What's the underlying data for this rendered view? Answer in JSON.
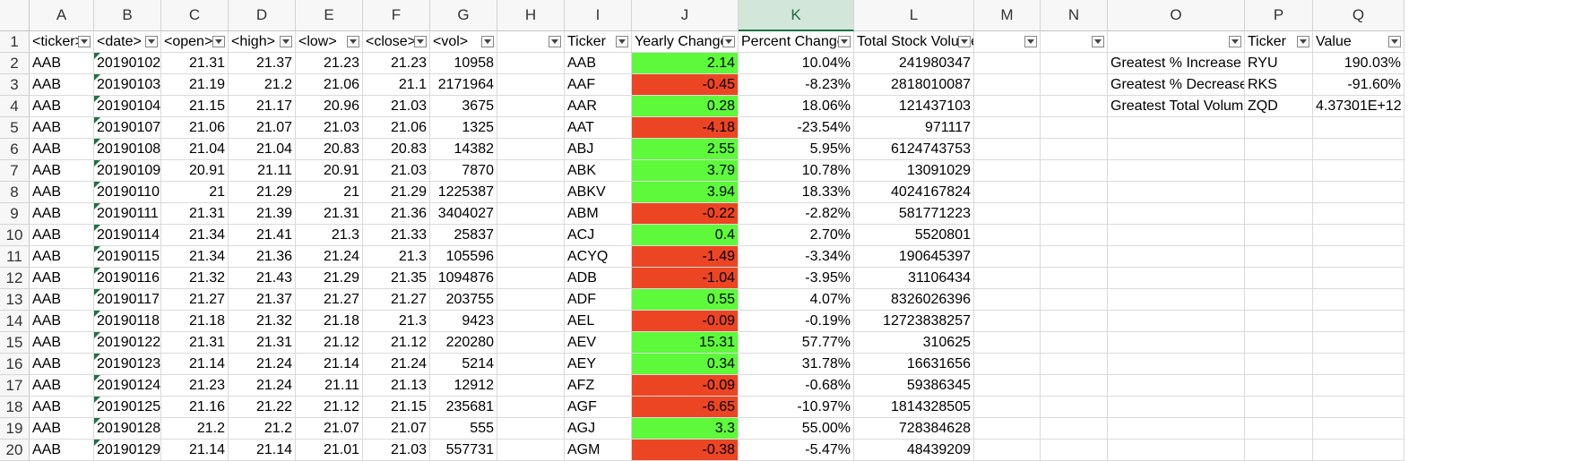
{
  "sheet": {
    "columns": [
      "A",
      "B",
      "C",
      "D",
      "E",
      "F",
      "G",
      "H",
      "I",
      "J",
      "K",
      "L",
      "M",
      "N",
      "O",
      "P",
      "Q"
    ],
    "selected_column": "K",
    "rows": [
      "1",
      "2",
      "3",
      "4",
      "5",
      "6",
      "7",
      "8",
      "9",
      "10",
      "11",
      "12",
      "13",
      "14",
      "15",
      "16",
      "17",
      "18",
      "19",
      "20"
    ],
    "headers": [
      "<ticker>",
      "<date>",
      "<open>",
      "<high>",
      "<low>",
      "<close>",
      "<vol>",
      "",
      "Ticker",
      "Yearly Change",
      "Percent Change",
      "Total Stock Volume",
      "",
      "",
      "",
      "Ticker",
      "Value"
    ],
    "filter_columns": [
      "A",
      "B",
      "C",
      "D",
      "E",
      "F",
      "G",
      "H",
      "I",
      "J",
      "K",
      "L",
      "M",
      "N",
      "O",
      "P",
      "Q"
    ],
    "data": [
      [
        "AAB",
        "20190102",
        "21.31",
        "21.37",
        "21.23",
        "21.23",
        "10958",
        "AAB",
        "2.14",
        "10.04%",
        "241980347"
      ],
      [
        "AAB",
        "20190103",
        "21.19",
        "21.2",
        "21.06",
        "21.1",
        "2171964",
        "AAF",
        "-0.45",
        "-8.23%",
        "2818010087"
      ],
      [
        "AAB",
        "20190104",
        "21.15",
        "21.17",
        "20.96",
        "21.03",
        "3675",
        "AAR",
        "0.28",
        "18.06%",
        "121437103"
      ],
      [
        "AAB",
        "20190107",
        "21.06",
        "21.07",
        "21.03",
        "21.06",
        "1325",
        "AAT",
        "-4.18",
        "-23.54%",
        "971117"
      ],
      [
        "AAB",
        "20190108",
        "21.04",
        "21.04",
        "20.83",
        "20.83",
        "14382",
        "ABJ",
        "2.55",
        "5.95%",
        "6124743753"
      ],
      [
        "AAB",
        "20190109",
        "20.91",
        "21.11",
        "20.91",
        "21.03",
        "7870",
        "ABK",
        "3.79",
        "10.78%",
        "13091029"
      ],
      [
        "AAB",
        "20190110",
        "21",
        "21.29",
        "21",
        "21.29",
        "1225387",
        "ABKV",
        "3.94",
        "18.33%",
        "4024167824"
      ],
      [
        "AAB",
        "20190111",
        "21.31",
        "21.39",
        "21.31",
        "21.36",
        "3404027",
        "ABM",
        "-0.22",
        "-2.82%",
        "581771223"
      ],
      [
        "AAB",
        "20190114",
        "21.34",
        "21.41",
        "21.3",
        "21.33",
        "25837",
        "ACJ",
        "0.4",
        "2.70%",
        "5520801"
      ],
      [
        "AAB",
        "20190115",
        "21.34",
        "21.36",
        "21.24",
        "21.3",
        "105596",
        "ACYQ",
        "-1.49",
        "-3.34%",
        "190645397"
      ],
      [
        "AAB",
        "20190116",
        "21.32",
        "21.43",
        "21.29",
        "21.35",
        "1094876",
        "ADB",
        "-1.04",
        "-3.95%",
        "31106434"
      ],
      [
        "AAB",
        "20190117",
        "21.27",
        "21.37",
        "21.27",
        "21.27",
        "203755",
        "ADF",
        "0.55",
        "4.07%",
        "8326026396"
      ],
      [
        "AAB",
        "20190118",
        "21.18",
        "21.32",
        "21.18",
        "21.3",
        "9423",
        "AEL",
        "-0.09",
        "-0.19%",
        "12723838257"
      ],
      [
        "AAB",
        "20190122",
        "21.31",
        "21.31",
        "21.12",
        "21.12",
        "220280",
        "AEV",
        "15.31",
        "57.77%",
        "310625"
      ],
      [
        "AAB",
        "20190123",
        "21.14",
        "21.24",
        "21.14",
        "21.24",
        "5214",
        "AEY",
        "0.34",
        "31.78%",
        "16631656"
      ],
      [
        "AAB",
        "20190124",
        "21.23",
        "21.24",
        "21.11",
        "21.13",
        "12912",
        "AFZ",
        "-0.09",
        "-0.68%",
        "59386345"
      ],
      [
        "AAB",
        "20190125",
        "21.16",
        "21.22",
        "21.12",
        "21.15",
        "235681",
        "AGF",
        "-6.65",
        "-10.97%",
        "1814328505"
      ],
      [
        "AAB",
        "20190128",
        "21.2",
        "21.2",
        "21.07",
        "21.07",
        "555",
        "AGJ",
        "3.3",
        "55.00%",
        "728384628"
      ],
      [
        "AAB",
        "20190129",
        "21.14",
        "21.14",
        "21.01",
        "21.03",
        "557731",
        "AGM",
        "-0.38",
        "-5.47%",
        "48439209"
      ]
    ],
    "summary": [
      [
        "Greatest % Increase",
        "RYU",
        "190.03%"
      ],
      [
        "Greatest % Decrease",
        "RKS",
        "-91.60%"
      ],
      [
        "Greatest Total Volume",
        "ZQD",
        "4.37301E+12"
      ]
    ],
    "colors": {
      "positive": "#5df93a",
      "negative": "#ec4524",
      "selected_header": "#d3e6da"
    }
  }
}
